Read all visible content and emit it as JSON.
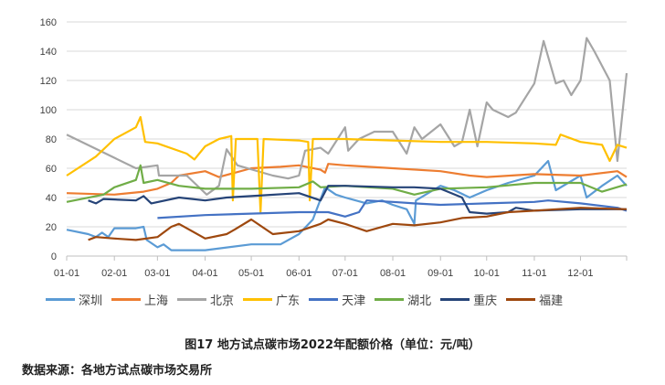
{
  "chart_data": {
    "type": "line",
    "title": "",
    "xlabel": "",
    "ylabel": "",
    "ylim": [
      0,
      160
    ],
    "yticks": [
      0,
      20,
      40,
      60,
      80,
      100,
      120,
      140,
      160
    ],
    "xticks": [
      "01-01",
      "02-01",
      "03-01",
      "04-01",
      "05-01",
      "06-01",
      "07-01",
      "08-01",
      "09-01",
      "10-01",
      "11-01",
      "12-01"
    ],
    "x_range": [
      "01-01",
      "12-31"
    ],
    "grid": "horizontal",
    "legend_position": "bottom",
    "series": [
      {
        "name": "深圳",
        "color": "#5B9BD5",
        "points": [
          [
            "01-01",
            18
          ],
          [
            "01-15",
            15
          ],
          [
            "01-20",
            13
          ],
          [
            "01-24",
            16
          ],
          [
            "01-28",
            13
          ],
          [
            "02-01",
            19
          ],
          [
            "02-15",
            19
          ],
          [
            "02-20",
            20
          ],
          [
            "02-22",
            11
          ],
          [
            "03-01",
            6
          ],
          [
            "03-05",
            8
          ],
          [
            "03-10",
            4
          ],
          [
            "04-01",
            4
          ],
          [
            "05-01",
            8
          ],
          [
            "05-20",
            8
          ],
          [
            "06-01",
            15
          ],
          [
            "06-10",
            25
          ],
          [
            "06-18",
            47
          ],
          [
            "06-25",
            42
          ],
          [
            "07-01",
            40
          ],
          [
            "07-15",
            36
          ],
          [
            "07-25",
            38
          ],
          [
            "08-01",
            35
          ],
          [
            "08-10",
            32
          ],
          [
            "08-15",
            22
          ],
          [
            "08-16",
            38
          ],
          [
            "09-01",
            48
          ],
          [
            "09-10",
            45
          ],
          [
            "09-20",
            40
          ],
          [
            "10-01",
            45
          ],
          [
            "10-15",
            50
          ],
          [
            "11-01",
            55
          ],
          [
            "11-10",
            65
          ],
          [
            "11-15",
            45
          ],
          [
            "12-01",
            55
          ],
          [
            "12-05",
            40
          ],
          [
            "12-15",
            48
          ],
          [
            "12-25",
            55
          ],
          [
            "12-31",
            48
          ]
        ]
      },
      {
        "name": "上海",
        "color": "#ED7D31",
        "points": [
          [
            "01-01",
            43
          ],
          [
            "02-01",
            42
          ],
          [
            "02-20",
            44
          ],
          [
            "03-01",
            46
          ],
          [
            "03-10",
            50
          ],
          [
            "03-15",
            55
          ],
          [
            "04-01",
            58
          ],
          [
            "04-10",
            54
          ],
          [
            "05-01",
            60
          ],
          [
            "05-20",
            61
          ],
          [
            "06-01",
            62
          ],
          [
            "06-15",
            59
          ],
          [
            "06-18",
            57
          ],
          [
            "06-20",
            63
          ],
          [
            "07-01",
            62
          ],
          [
            "08-01",
            60
          ],
          [
            "09-01",
            58
          ],
          [
            "09-20",
            55
          ],
          [
            "10-01",
            54
          ],
          [
            "11-01",
            56
          ],
          [
            "12-01",
            55
          ],
          [
            "12-25",
            58
          ],
          [
            "12-31",
            54
          ]
        ]
      },
      {
        "name": "北京",
        "color": "#A5A5A5",
        "points": [
          [
            "01-01",
            83
          ],
          [
            "02-15",
            60
          ],
          [
            "03-01",
            62
          ],
          [
            "03-02",
            55
          ],
          [
            "03-20",
            55
          ],
          [
            "04-02",
            42
          ],
          [
            "04-10",
            48
          ],
          [
            "04-15",
            73
          ],
          [
            "04-22",
            62
          ],
          [
            "05-15",
            55
          ],
          [
            "05-25",
            53
          ],
          [
            "06-01",
            55
          ],
          [
            "06-05",
            72
          ],
          [
            "06-15",
            74
          ],
          [
            "06-20",
            70
          ],
          [
            "07-01",
            88
          ],
          [
            "07-03",
            72
          ],
          [
            "07-10",
            80
          ],
          [
            "07-20",
            85
          ],
          [
            "08-01",
            85
          ],
          [
            "08-10",
            70
          ],
          [
            "08-15",
            88
          ],
          [
            "08-20",
            80
          ],
          [
            "09-01",
            90
          ],
          [
            "09-10",
            75
          ],
          [
            "09-15",
            78
          ],
          [
            "09-20",
            100
          ],
          [
            "09-25",
            75
          ],
          [
            "10-01",
            105
          ],
          [
            "10-05",
            100
          ],
          [
            "10-15",
            95
          ],
          [
            "10-20",
            98
          ],
          [
            "11-01",
            118
          ],
          [
            "11-07",
            147
          ],
          [
            "11-15",
            118
          ],
          [
            "11-20",
            120
          ],
          [
            "11-25",
            110
          ],
          [
            "12-01",
            120
          ],
          [
            "12-05",
            149
          ],
          [
            "12-10",
            140
          ],
          [
            "12-20",
            120
          ],
          [
            "12-25",
            65
          ],
          [
            "12-31",
            125
          ]
        ]
      },
      {
        "name": "广东",
        "color": "#FFC000",
        "points": [
          [
            "01-01",
            55
          ],
          [
            "01-20",
            68
          ],
          [
            "02-01",
            80
          ],
          [
            "02-15",
            88
          ],
          [
            "02-18",
            95
          ],
          [
            "02-21",
            78
          ],
          [
            "03-01",
            77
          ],
          [
            "03-20",
            70
          ],
          [
            "03-25",
            66
          ],
          [
            "04-01",
            75
          ],
          [
            "04-10",
            80
          ],
          [
            "04-18",
            82
          ],
          [
            "04-19",
            38
          ],
          [
            "04-21",
            80
          ],
          [
            "05-05",
            80
          ],
          [
            "05-07",
            30
          ],
          [
            "05-09",
            80
          ],
          [
            "06-01",
            79
          ],
          [
            "06-07",
            78
          ],
          [
            "06-08",
            38
          ],
          [
            "06-10",
            80
          ],
          [
            "07-01",
            80
          ],
          [
            "08-01",
            79
          ],
          [
            "09-01",
            78
          ],
          [
            "10-01",
            78
          ],
          [
            "11-01",
            77
          ],
          [
            "11-15",
            76
          ],
          [
            "11-18",
            83
          ],
          [
            "12-01",
            78
          ],
          [
            "12-15",
            76
          ],
          [
            "12-20",
            65
          ],
          [
            "12-25",
            76
          ],
          [
            "12-31",
            74
          ]
        ]
      },
      {
        "name": "天津",
        "color": "#4472C4",
        "points": [
          [
            "03-01",
            26
          ],
          [
            "04-01",
            28
          ],
          [
            "06-01",
            30
          ],
          [
            "06-20",
            30
          ],
          [
            "07-01",
            27
          ],
          [
            "07-10",
            30
          ],
          [
            "07-15",
            38
          ],
          [
            "08-01",
            37
          ],
          [
            "08-15",
            36
          ],
          [
            "09-01",
            35
          ],
          [
            "10-01",
            36
          ],
          [
            "11-01",
            37
          ],
          [
            "11-10",
            38
          ],
          [
            "12-01",
            36
          ],
          [
            "12-25",
            33
          ],
          [
            "12-31",
            31
          ]
        ]
      },
      {
        "name": "湖北",
        "color": "#70AD47",
        "points": [
          [
            "01-01",
            37
          ],
          [
            "01-25",
            42
          ],
          [
            "02-01",
            47
          ],
          [
            "02-15",
            52
          ],
          [
            "02-18",
            62
          ],
          [
            "02-20",
            50
          ],
          [
            "03-01",
            52
          ],
          [
            "03-15",
            48
          ],
          [
            "04-01",
            46
          ],
          [
            "05-01",
            46
          ],
          [
            "06-01",
            47
          ],
          [
            "06-10",
            51
          ],
          [
            "06-15",
            47
          ],
          [
            "07-01",
            48
          ],
          [
            "08-01",
            46
          ],
          [
            "08-15",
            42
          ],
          [
            "09-01",
            46
          ],
          [
            "10-01",
            47
          ],
          [
            "11-01",
            50
          ],
          [
            "12-01",
            50
          ],
          [
            "12-15",
            44
          ],
          [
            "12-31",
            49
          ]
        ]
      },
      {
        "name": "重庆",
        "color": "#264478",
        "points": [
          [
            "01-15",
            38
          ],
          [
            "01-20",
            36
          ],
          [
            "01-25",
            39
          ],
          [
            "02-15",
            38
          ],
          [
            "02-20",
            41
          ],
          [
            "02-25",
            36
          ],
          [
            "03-15",
            40
          ],
          [
            "04-01",
            38
          ],
          [
            "04-15",
            40
          ],
          [
            "05-01",
            41
          ],
          [
            "06-01",
            43
          ],
          [
            "06-15",
            38
          ],
          [
            "06-20",
            48
          ],
          [
            "07-01",
            48
          ],
          [
            "08-01",
            47
          ],
          [
            "08-15",
            47
          ],
          [
            "09-01",
            46
          ],
          [
            "09-15",
            40
          ],
          [
            "09-20",
            30
          ],
          [
            "10-01",
            29
          ],
          [
            "10-15",
            30
          ],
          [
            "10-20",
            33
          ],
          [
            "11-01",
            31
          ],
          [
            "12-01",
            32
          ],
          [
            "12-31",
            32
          ]
        ]
      },
      {
        "name": "福建",
        "color": "#9E480E",
        "points": [
          [
            "01-15",
            11
          ],
          [
            "01-20",
            13
          ],
          [
            "02-01",
            12
          ],
          [
            "02-15",
            11
          ],
          [
            "03-01",
            13
          ],
          [
            "03-10",
            20
          ],
          [
            "03-15",
            22
          ],
          [
            "04-01",
            12
          ],
          [
            "04-15",
            15
          ],
          [
            "04-20",
            18
          ],
          [
            "05-01",
            25
          ],
          [
            "05-15",
            15
          ],
          [
            "06-01",
            17
          ],
          [
            "06-15",
            22
          ],
          [
            "06-20",
            25
          ],
          [
            "07-01",
            22
          ],
          [
            "07-15",
            17
          ],
          [
            "08-01",
            22
          ],
          [
            "08-15",
            21
          ],
          [
            "09-01",
            23
          ],
          [
            "09-15",
            26
          ],
          [
            "10-01",
            27
          ],
          [
            "10-15",
            30
          ],
          [
            "11-01",
            31
          ],
          [
            "12-01",
            33
          ],
          [
            "12-31",
            32
          ]
        ]
      }
    ]
  },
  "caption": "图17 地方试点碳市场2022年配额价格（单位：元/吨）",
  "source": "数据来源：各地方试点碳市场交易所"
}
